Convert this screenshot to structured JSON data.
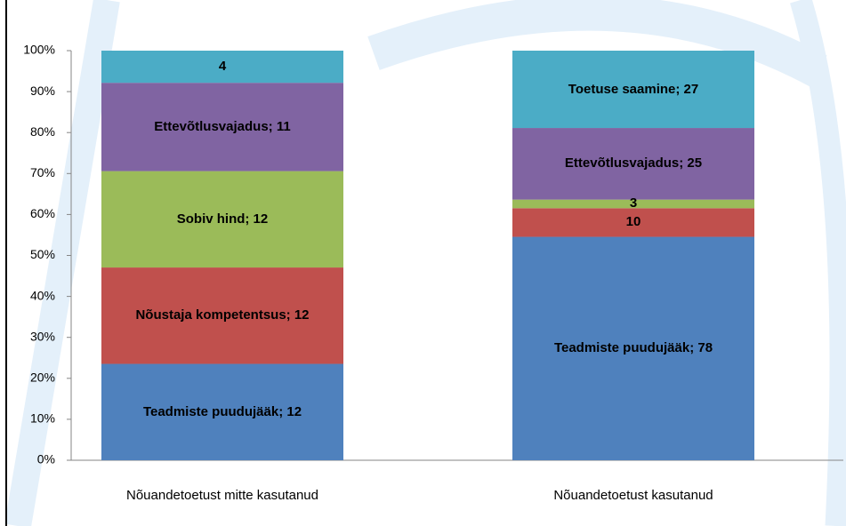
{
  "chart_data": {
    "type": "bar",
    "stacked": "percent",
    "categories": [
      "Nõuandetoetust mitte kasutanud",
      "Nõuandetoetust kasutanud"
    ],
    "series": [
      {
        "color": "#4f81bd",
        "values": [
          12,
          78
        ],
        "value_labels": [
          "Teadmiste puudujääk; 12",
          "Teadmiste puudujääk; 78"
        ]
      },
      {
        "color": "#c0504d",
        "values": [
          12,
          10
        ],
        "value_labels": [
          "Nõustaja kompetentsus; 12",
          "10"
        ]
      },
      {
        "color": "#9bbb59",
        "values": [
          12,
          3
        ],
        "value_labels": [
          "Sobiv hind; 12",
          "3"
        ]
      },
      {
        "color": "#8064a2",
        "values": [
          11,
          25
        ],
        "value_labels": [
          "Ettevõtlusvajadus; 11",
          "Ettevõtlusvajadus; 25"
        ]
      },
      {
        "color": "#4bacc6",
        "values": [
          4,
          27
        ],
        "value_labels": [
          "4",
          "Toetuse saamine; 27"
        ]
      }
    ],
    "ylim": [
      0,
      100
    ],
    "yticks": [
      {
        "value": 0,
        "label": "0%"
      },
      {
        "value": 10,
        "label": "10%"
      },
      {
        "value": 20,
        "label": "20%"
      },
      {
        "value": 30,
        "label": "30%"
      },
      {
        "value": 40,
        "label": "40%"
      },
      {
        "value": 50,
        "label": "50%"
      },
      {
        "value": 60,
        "label": "60%"
      },
      {
        "value": 70,
        "label": "70%"
      },
      {
        "value": 80,
        "label": "80%"
      },
      {
        "value": 90,
        "label": "90%"
      },
      {
        "value": 100,
        "label": "100%"
      }
    ]
  }
}
